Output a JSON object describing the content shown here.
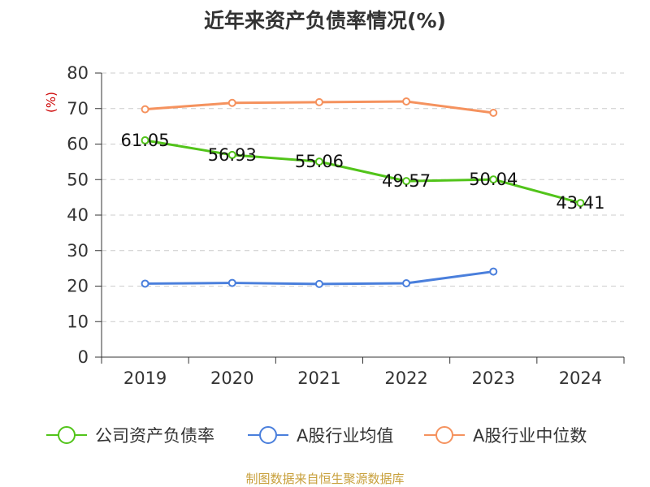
{
  "chart_data": {
    "type": "line",
    "title": "近年来资产负债率情况(%)",
    "yunit": "(%)",
    "categories": [
      "2019",
      "2020",
      "2021",
      "2022",
      "2023",
      "2024"
    ],
    "ylim": [
      0,
      80
    ],
    "yticks": [
      0,
      10,
      20,
      30,
      40,
      50,
      60,
      70,
      80
    ],
    "grid": true,
    "legend_position": "bottom",
    "series": [
      {
        "name": "公司资产负债率",
        "color": "#52c41a",
        "values": [
          61.05,
          56.93,
          55.06,
          49.57,
          50.04,
          43.41
        ],
        "labels": [
          "61.05",
          "56.93",
          "55.06",
          "49.57",
          "50.04",
          "43.41"
        ],
        "show_labels": true
      },
      {
        "name": "A股行业均值",
        "color": "#4a7fdc",
        "values": [
          20.7,
          20.9,
          20.6,
          20.8,
          24.1,
          null
        ],
        "show_labels": false
      },
      {
        "name": "A股行业中位数",
        "color": "#f5925e",
        "values": [
          69.8,
          71.6,
          71.8,
          72.0,
          68.8,
          null
        ],
        "show_labels": false
      }
    ]
  },
  "source": "制图数据来自恒生聚源数据库"
}
